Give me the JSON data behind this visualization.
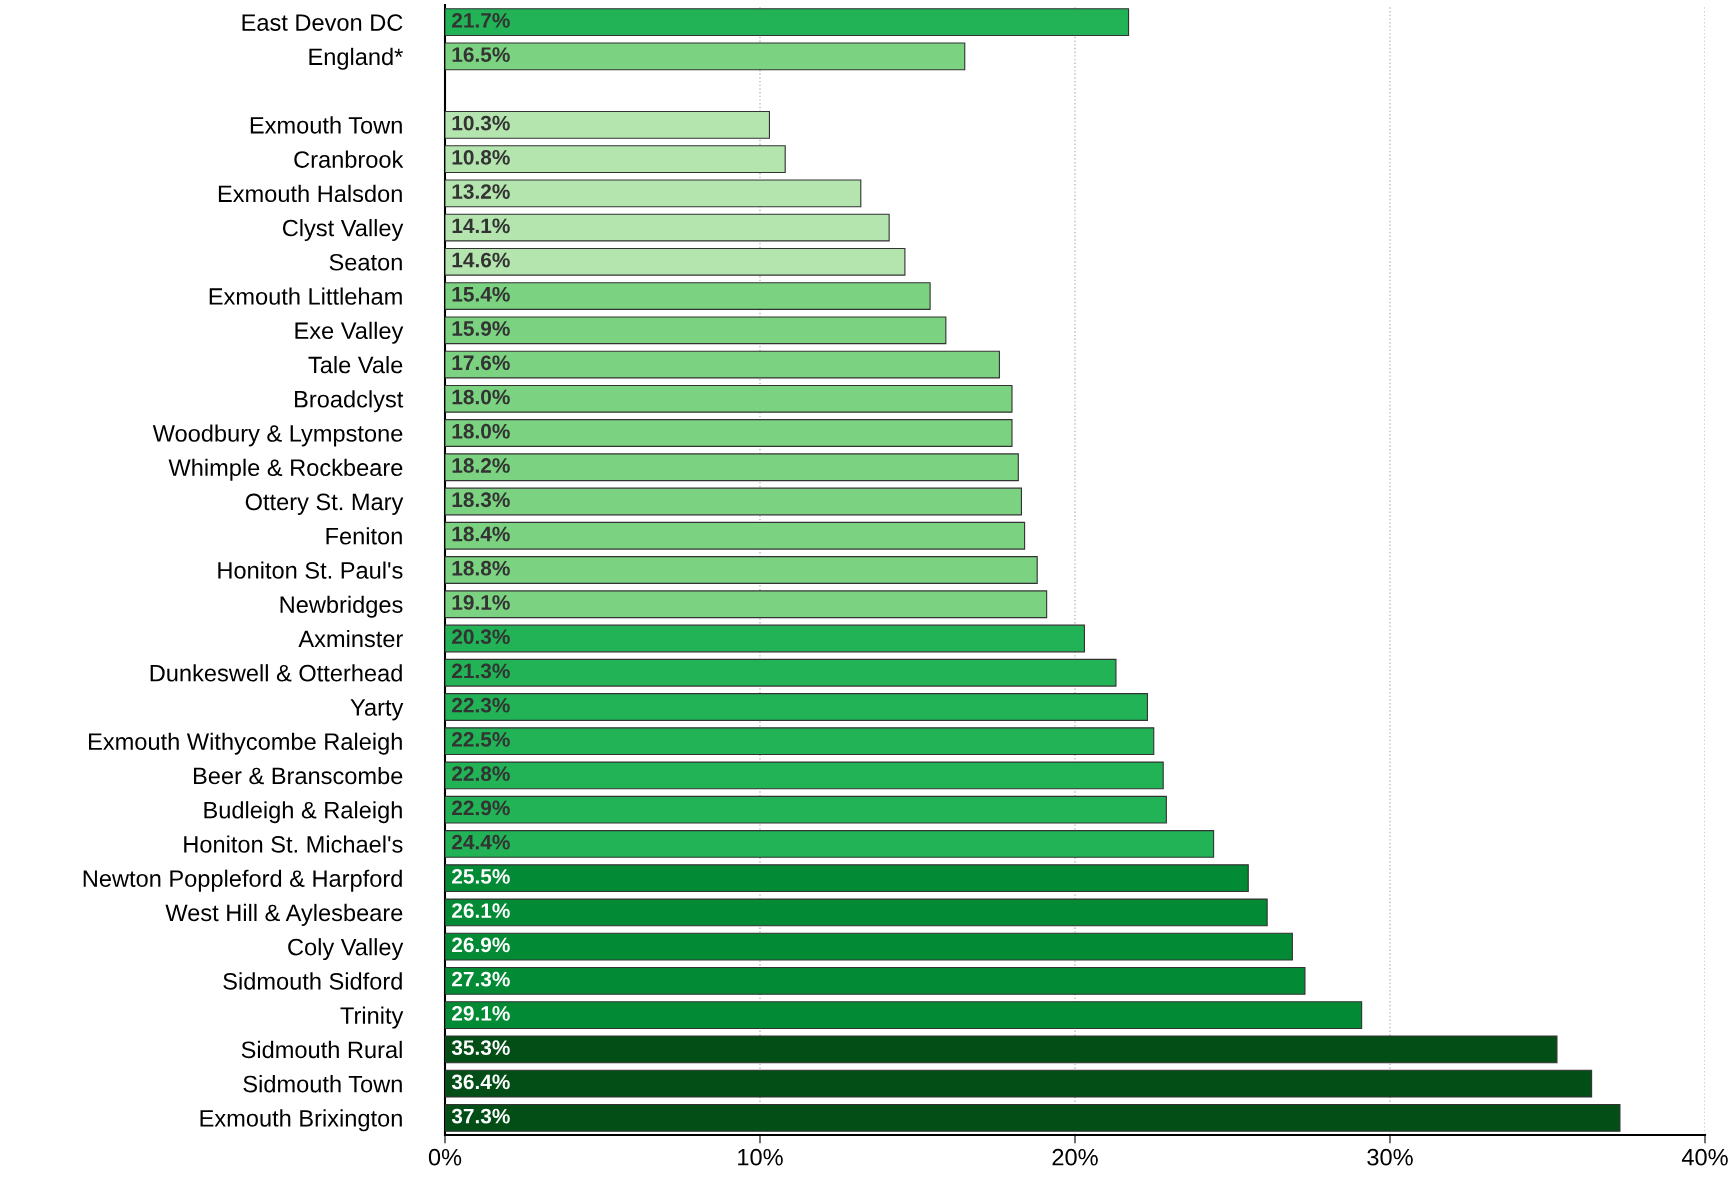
{
  "chart_data": {
    "type": "bar",
    "orientation": "horizontal",
    "categories": [
      "East Devon DC",
      "England*",
      null,
      "Exmouth Town",
      "Cranbrook",
      "Exmouth Halsdon",
      "Clyst Valley",
      "Seaton",
      "Exmouth Littleham",
      "Exe Valley",
      "Tale Vale",
      "Broadclyst",
      "Woodbury & Lympstone",
      "Whimple & Rockbeare",
      "Ottery St. Mary",
      "Feniton",
      "Honiton St. Paul's",
      "Newbridges",
      "Axminster",
      "Dunkeswell & Otterhead",
      "Yarty",
      "Exmouth Withycombe Raleigh",
      "Beer & Branscombe",
      "Budleigh & Raleigh",
      "Honiton St. Michael's",
      "Newton Poppleford & Harpford",
      "West Hill & Aylesbeare",
      "Coly Valley",
      "Sidmouth Sidford",
      "Trinity",
      "Sidmouth Rural",
      "Sidmouth Town",
      "Exmouth Brixington"
    ],
    "values": [
      21.7,
      16.5,
      null,
      10.3,
      10.8,
      13.2,
      14.1,
      14.6,
      15.4,
      15.9,
      17.6,
      18.0,
      18.0,
      18.2,
      18.3,
      18.4,
      18.8,
      19.1,
      20.3,
      21.3,
      22.3,
      22.5,
      22.8,
      22.9,
      24.4,
      25.5,
      26.1,
      26.9,
      27.3,
      29.1,
      35.3,
      36.4,
      37.3
    ],
    "value_labels": [
      "21.7%",
      "16.5%",
      null,
      "10.3%",
      "10.8%",
      "13.2%",
      "14.1%",
      "14.6%",
      "15.4%",
      "15.9%",
      "17.6%",
      "18.0%",
      "18.0%",
      "18.2%",
      "18.3%",
      "18.4%",
      "18.8%",
      "19.1%",
      "20.3%",
      "21.3%",
      "22.3%",
      "22.5%",
      "22.8%",
      "22.9%",
      "24.4%",
      "25.5%",
      "26.1%",
      "26.9%",
      "27.3%",
      "29.1%",
      "35.3%",
      "36.4%",
      "37.3%"
    ],
    "colors": [
      "#21b356",
      "#7bd280",
      null,
      "#b5e5ae",
      "#b5e5ae",
      "#b5e5ae",
      "#b5e5ae",
      "#b5e5ae",
      "#7bd280",
      "#7bd280",
      "#7bd280",
      "#7bd280",
      "#7bd280",
      "#7bd280",
      "#7bd280",
      "#7bd280",
      "#7bd280",
      "#7bd280",
      "#21b356",
      "#21b356",
      "#21b356",
      "#21b356",
      "#21b356",
      "#21b356",
      "#21b356",
      "#038a35",
      "#038a35",
      "#038a35",
      "#038a35",
      "#038a35",
      "#034d17",
      "#034d17",
      "#034d17"
    ],
    "xlim": [
      0,
      40
    ],
    "xticks": [
      {
        "value": 0,
        "label": "0%"
      },
      {
        "value": 10,
        "label": "10%"
      },
      {
        "value": 20,
        "label": "20%"
      },
      {
        "value": 30,
        "label": "30%"
      },
      {
        "value": 40,
        "label": "40%"
      }
    ],
    "grid": "x",
    "legend": false
  }
}
